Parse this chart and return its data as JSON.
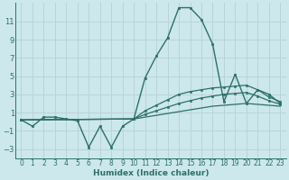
{
  "xlabel": "Humidex (Indice chaleur)",
  "bg_color": "#cce8ec",
  "grid_color": "#b8d4d8",
  "line_color": "#2d7068",
  "xlim": [
    -0.5,
    23.5
  ],
  "ylim": [
    -4,
    13
  ],
  "xticks": [
    0,
    1,
    2,
    3,
    4,
    5,
    6,
    7,
    8,
    9,
    10,
    11,
    12,
    13,
    14,
    15,
    16,
    17,
    18,
    19,
    20,
    21,
    22,
    23
  ],
  "yticks": [
    -3,
    -1,
    1,
    3,
    5,
    7,
    9,
    11
  ],
  "line1_x": [
    0,
    1,
    2,
    3,
    4,
    5,
    6,
    7,
    8,
    9,
    10,
    11,
    12,
    13,
    14,
    15,
    16,
    17,
    18,
    19,
    20,
    21,
    22,
    23
  ],
  "line1_y": [
    0.2,
    -0.5,
    0.5,
    0.5,
    0.3,
    0.1,
    -2.8,
    -0.5,
    -2.8,
    -0.5,
    0.3,
    4.8,
    7.2,
    9.2,
    12.5,
    12.5,
    11.2,
    8.5,
    2.2,
    5.2,
    2.0,
    3.5,
    3.0,
    2.0
  ],
  "line2_x": [
    0,
    10,
    11,
    12,
    13,
    14,
    15,
    16,
    17,
    18,
    19,
    20,
    21,
    22,
    23
  ],
  "line2_y": [
    0.2,
    0.3,
    1.2,
    1.8,
    2.4,
    3.0,
    3.3,
    3.5,
    3.7,
    3.8,
    3.9,
    4.0,
    3.5,
    2.7,
    2.2
  ],
  "line3_x": [
    0,
    10,
    11,
    12,
    13,
    14,
    15,
    16,
    17,
    18,
    19,
    20,
    21,
    22,
    23
  ],
  "line3_y": [
    0.2,
    0.3,
    0.8,
    1.2,
    1.6,
    2.0,
    2.3,
    2.6,
    2.8,
    3.0,
    3.1,
    3.2,
    2.8,
    2.3,
    1.9
  ],
  "line4_x": [
    0,
    10,
    11,
    12,
    13,
    14,
    15,
    16,
    17,
    18,
    19,
    20,
    21,
    22,
    23
  ],
  "line4_y": [
    0.2,
    0.3,
    0.5,
    0.7,
    0.9,
    1.1,
    1.3,
    1.5,
    1.7,
    1.8,
    1.9,
    2.0,
    1.9,
    1.8,
    1.7
  ]
}
